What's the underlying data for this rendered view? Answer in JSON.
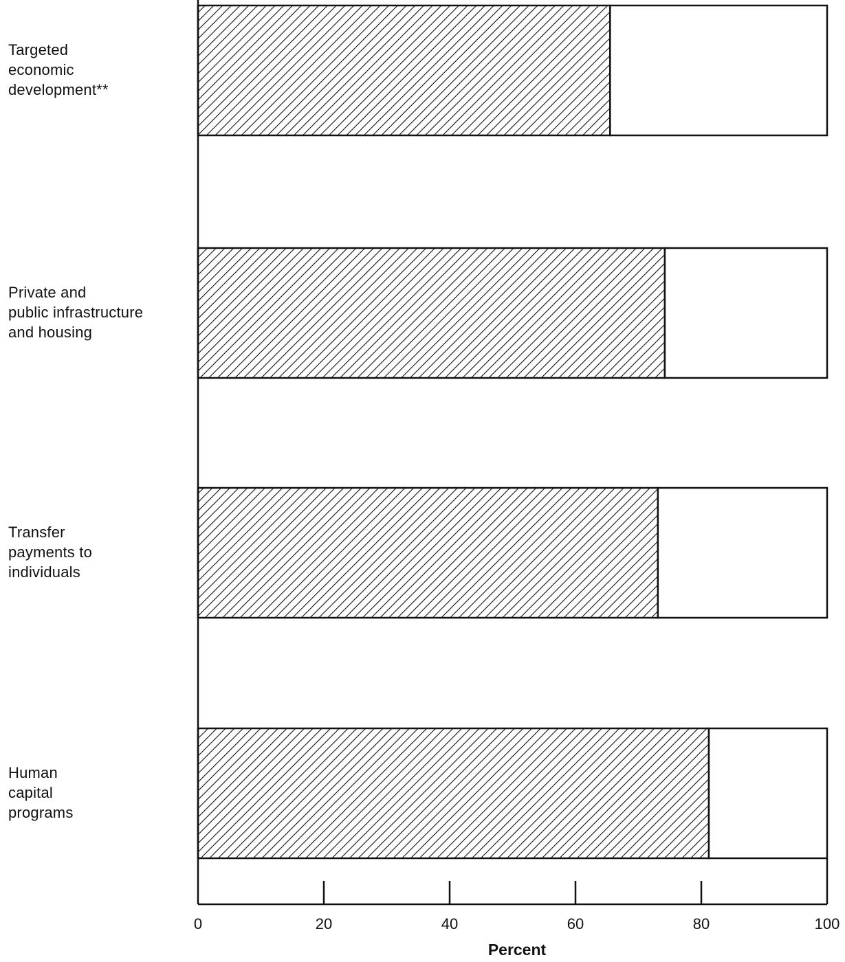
{
  "chart_data": {
    "type": "bar",
    "orientation": "horizontal",
    "stacked": true,
    "categories": [
      "Targeted\neconomic\ndevelopment**",
      "Private and\npublic infrastructure\nand housing",
      "Transfer\npayments to\nindividuals",
      "Human\ncapital\nprograms"
    ],
    "series": [
      {
        "values": [
          65.5,
          74.2,
          73.1,
          81.2
        ],
        "pattern": "diagonal-hatch"
      },
      {
        "values": [
          34.5,
          25.8,
          26.9,
          18.8
        ],
        "pattern": "blank"
      }
    ],
    "xlabel": "Percent",
    "xlim": [
      0,
      100
    ],
    "xticks": [
      "0",
      "20",
      "40",
      "60",
      "80",
      "100"
    ],
    "grid": false,
    "colors": {
      "ink": "#111111",
      "background": "#ffffff"
    }
  }
}
